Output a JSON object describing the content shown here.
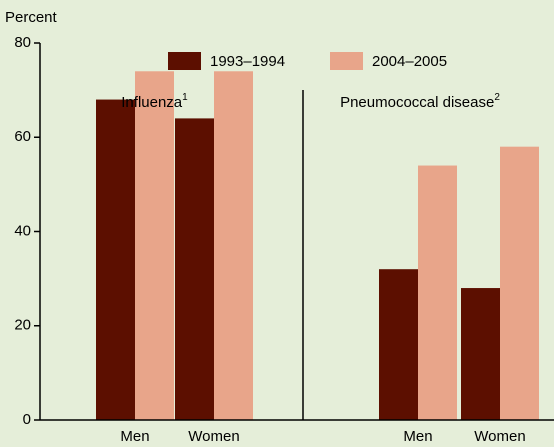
{
  "chart_data": {
    "type": "bar",
    "ylabel": "Percent",
    "categories": [
      "Men",
      "Women",
      "Men",
      "Women"
    ],
    "panels": [
      {
        "label": "Influenza",
        "note": "1"
      },
      {
        "label": "Pneumococcal disease",
        "note": "2"
      }
    ],
    "series": [
      {
        "name": "1993–1994",
        "color": "#5c0f00",
        "values": [
          68,
          64,
          32,
          28
        ]
      },
      {
        "name": "2004–2005",
        "color": "#e8a58a",
        "values": [
          74,
          74,
          54,
          58
        ]
      }
    ],
    "ylim": [
      0,
      80
    ],
    "yticks": [
      0,
      20,
      40,
      60,
      80
    ]
  }
}
